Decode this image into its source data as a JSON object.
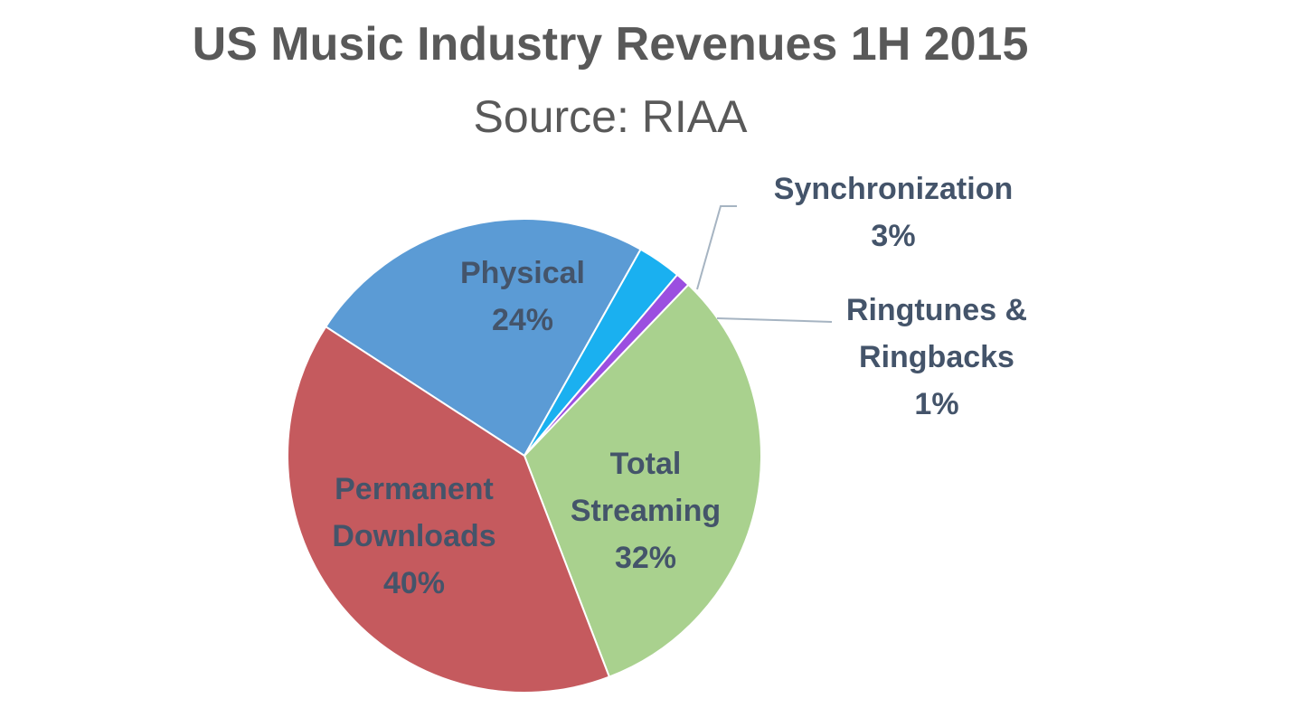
{
  "chart_data": {
    "type": "pie",
    "title": "US Music Industry Revenues 1H 2015",
    "subtitle": "Source: RIAA",
    "slices": [
      {
        "label_lines": [
          "Physical"
        ],
        "value": 24,
        "value_label": "24%",
        "color": "#5b9bd5"
      },
      {
        "label_lines": [
          "Synchronization"
        ],
        "value": 3,
        "value_label": "3%",
        "color": "#1ab0f0"
      },
      {
        "label_lines": [
          "Ringtunes &",
          "Ringbacks"
        ],
        "value": 1,
        "value_label": "1%",
        "color": "#9b4fe0"
      },
      {
        "label_lines": [
          "Total",
          "Streaming"
        ],
        "value": 32,
        "value_label": "32%",
        "color": "#a9d18e"
      },
      {
        "label_lines": [
          "Permanent",
          "Downloads"
        ],
        "value": 40,
        "value_label": "40%",
        "color": "#c55a5e"
      }
    ],
    "legend": "none",
    "label_style": "inside labels with leader lines for small slices"
  },
  "colors": {
    "title": "#595959",
    "subtitle": "#595959",
    "label": "#44546a",
    "leader_line": "#a6b4c2"
  }
}
